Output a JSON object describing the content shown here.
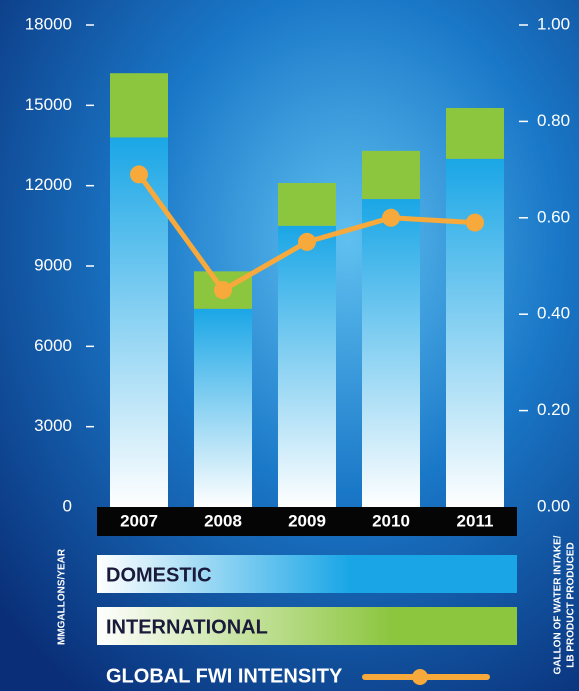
{
  "chart_data": {
    "type": "bar",
    "stacked": true,
    "categories": [
      "2007",
      "2008",
      "2009",
      "2010",
      "2011"
    ],
    "series": [
      {
        "name": "DOMESTIC",
        "color": "#1aa6e6",
        "values": [
          13800,
          7400,
          10500,
          11500,
          13000
        ]
      },
      {
        "name": "INTERNATIONAL",
        "color": "#8cc63f",
        "values": [
          2400,
          1400,
          1600,
          1800,
          1900
        ]
      },
      {
        "name": "GLOBAL FWI INTENSITY",
        "type": "line",
        "axis": "y2",
        "color": "#f7a93b",
        "values": [
          0.69,
          0.45,
          0.55,
          0.6,
          0.59
        ]
      }
    ],
    "ylim": [
      0,
      18000
    ],
    "yticks": [
      0,
      3000,
      6000,
      9000,
      12000,
      15000,
      18000
    ],
    "y2lim": [
      0,
      1
    ],
    "y2ticks": [
      {
        "value": 0,
        "label": "0.00"
      },
      {
        "value": 0.2,
        "label": "0.20"
      },
      {
        "value": 0.4,
        "label": "0.40"
      },
      {
        "value": 0.6,
        "label": "0.60"
      },
      {
        "value": 0.8,
        "label": "0.80"
      },
      {
        "value": 1,
        "label": "1.00"
      }
    ],
    "ylabel": "MMGALLONS/YEAR",
    "y2label": [
      "GALLON OF WATER INTAKE/",
      "LB PRODUCT PRODUCED"
    ]
  }
}
